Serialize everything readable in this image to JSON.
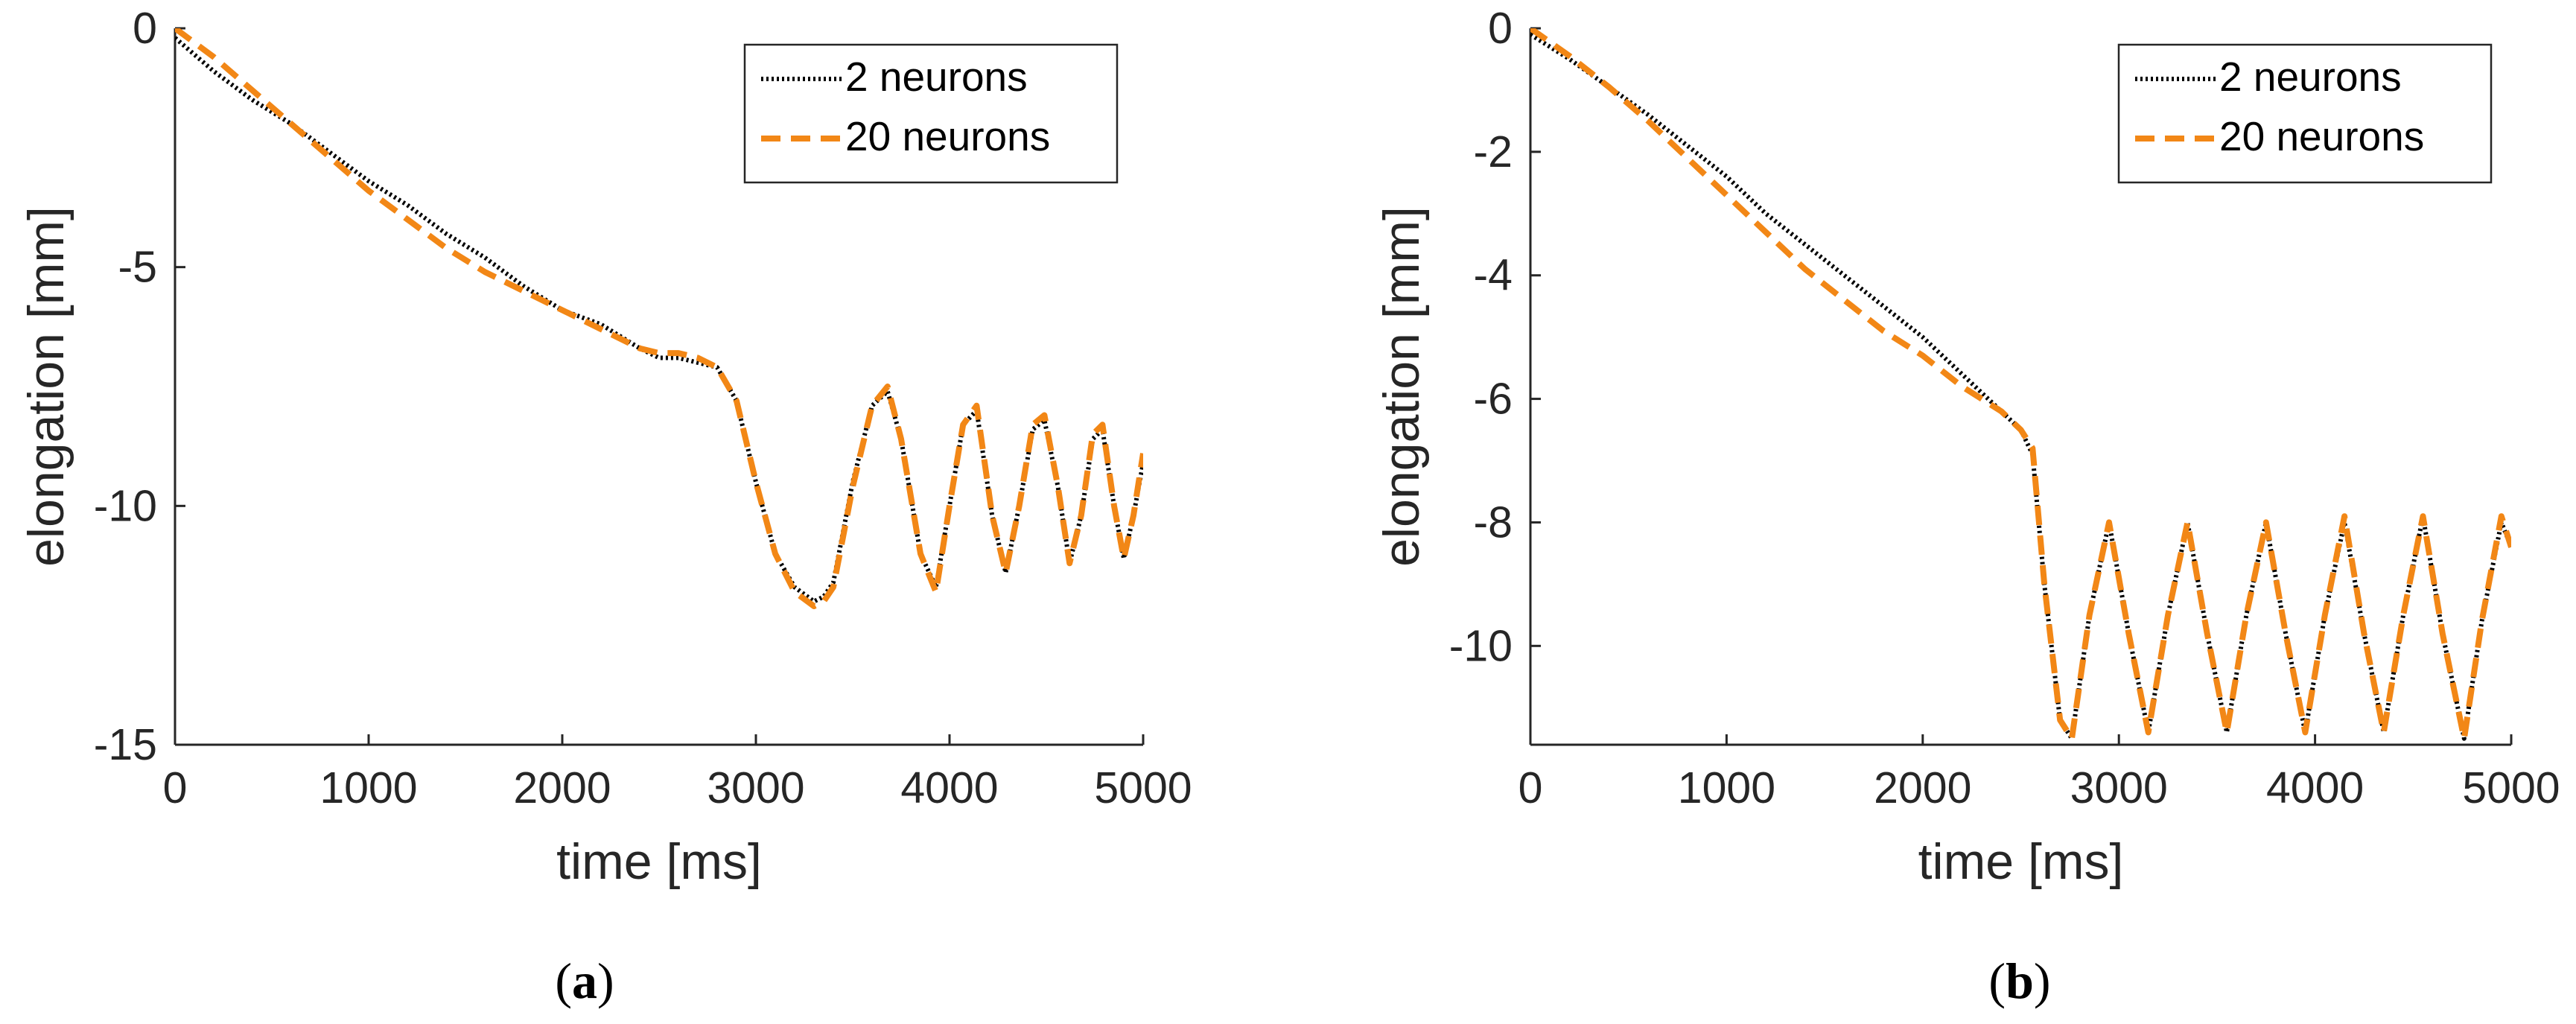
{
  "chart_data": [
    {
      "type": "line",
      "panel": "a",
      "caption_open": "(",
      "caption_letter": "a",
      "caption_close": ")",
      "xlabel": "time [ms]",
      "ylabel": "elongation [mm]",
      "xlim": [
        0,
        5000
      ],
      "ylim": [
        -15,
        0
      ],
      "xticks": [
        0,
        1000,
        2000,
        3000,
        4000,
        5000
      ],
      "yticks": [
        0,
        -5,
        -10,
        -15
      ],
      "legend_position": "top-right",
      "series": [
        {
          "name": "2 neurons",
          "style": "dotted",
          "color": "#000000",
          "x": [
            0,
            200,
            400,
            600,
            800,
            1000,
            1200,
            1400,
            1600,
            1800,
            2000,
            2200,
            2400,
            2500,
            2600,
            2700,
            2800,
            2900,
            3000,
            3100,
            3200,
            3300,
            3350,
            3400,
            3500,
            3600,
            3680,
            3750,
            3850,
            3930,
            4000,
            4070,
            4140,
            4220,
            4290,
            4360,
            4430,
            4490,
            4560,
            4620,
            4680,
            4740,
            4790,
            4850,
            4900,
            4950,
            5000
          ],
          "y": [
            -0.2,
            -0.9,
            -1.5,
            -2.0,
            -2.6,
            -3.2,
            -3.7,
            -4.3,
            -4.8,
            -5.4,
            -5.9,
            -6.2,
            -6.7,
            -6.9,
            -6.9,
            -7.0,
            -7.1,
            -7.8,
            -9.5,
            -11.0,
            -11.7,
            -12.0,
            -11.9,
            -11.6,
            -9.5,
            -7.9,
            -7.6,
            -8.6,
            -11.0,
            -11.7,
            -10.0,
            -8.3,
            -8.0,
            -10.2,
            -11.4,
            -10.0,
            -8.4,
            -8.2,
            -9.6,
            -11.2,
            -10.2,
            -8.6,
            -8.4,
            -10.0,
            -11.1,
            -10.2,
            -9.1
          ]
        },
        {
          "name": "20 neurons",
          "style": "dashed",
          "color": "#F28716",
          "x": [
            0,
            200,
            400,
            600,
            800,
            1000,
            1200,
            1400,
            1600,
            1800,
            2000,
            2200,
            2400,
            2500,
            2600,
            2700,
            2800,
            2900,
            3000,
            3100,
            3200,
            3300,
            3350,
            3400,
            3500,
            3600,
            3680,
            3750,
            3850,
            3930,
            4000,
            4070,
            4140,
            4220,
            4290,
            4360,
            4430,
            4490,
            4560,
            4620,
            4680,
            4740,
            4790,
            4850,
            4900,
            4950,
            5000
          ],
          "y": [
            0.0,
            -0.6,
            -1.3,
            -2.0,
            -2.7,
            -3.4,
            -4.0,
            -4.6,
            -5.1,
            -5.5,
            -5.9,
            -6.3,
            -6.7,
            -6.8,
            -6.8,
            -6.9,
            -7.1,
            -7.8,
            -9.5,
            -11.0,
            -11.8,
            -12.1,
            -12.0,
            -11.7,
            -9.6,
            -7.9,
            -7.5,
            -8.6,
            -11.0,
            -11.8,
            -10.0,
            -8.3,
            -7.9,
            -10.2,
            -11.4,
            -10.0,
            -8.3,
            -8.1,
            -9.6,
            -11.2,
            -10.2,
            -8.5,
            -8.3,
            -10.0,
            -11.1,
            -10.2,
            -8.9
          ]
        }
      ]
    },
    {
      "type": "line",
      "panel": "b",
      "caption_open": "(",
      "caption_letter": "b",
      "caption_close": ")",
      "xlabel": "time [ms]",
      "ylabel": "elongation [mm]",
      "xlim": [
        0,
        5000
      ],
      "ylim": [
        -11.6,
        0
      ],
      "xticks": [
        0,
        1000,
        2000,
        3000,
        4000,
        5000
      ],
      "yticks": [
        0,
        -2,
        -4,
        -6,
        -8,
        -10
      ],
      "legend_position": "top-right",
      "series": [
        {
          "name": "2 neurons",
          "style": "dotted",
          "color": "#000000",
          "x": [
            0,
            200,
            400,
            600,
            800,
            1000,
            1200,
            1400,
            1600,
            1800,
            2000,
            2200,
            2400,
            2500,
            2560,
            2620,
            2700,
            2760,
            2850,
            2950,
            3050,
            3150,
            3250,
            3350,
            3450,
            3550,
            3650,
            3750,
            3850,
            3950,
            4050,
            4150,
            4250,
            4350,
            4450,
            4550,
            4650,
            4760,
            4850,
            4950,
            5000
          ],
          "y": [
            -0.1,
            -0.5,
            -0.95,
            -1.4,
            -1.9,
            -2.4,
            -3.0,
            -3.5,
            -4.0,
            -4.5,
            -5.0,
            -5.6,
            -6.2,
            -6.5,
            -6.9,
            -9.0,
            -11.2,
            -11.5,
            -9.5,
            -8.0,
            -9.8,
            -11.4,
            -9.5,
            -8.0,
            -9.8,
            -11.4,
            -9.5,
            -8.0,
            -9.8,
            -11.4,
            -9.5,
            -8.0,
            -9.8,
            -11.4,
            -9.5,
            -7.9,
            -9.8,
            -11.5,
            -9.6,
            -8.0,
            -8.4
          ]
        },
        {
          "name": "20 neurons",
          "style": "dashed",
          "color": "#F28716",
          "x": [
            0,
            200,
            400,
            600,
            800,
            1000,
            1200,
            1400,
            1600,
            1800,
            2000,
            2200,
            2400,
            2500,
            2560,
            2620,
            2700,
            2760,
            2850,
            2950,
            3050,
            3150,
            3250,
            3350,
            3450,
            3550,
            3650,
            3750,
            3850,
            3950,
            4050,
            4150,
            4250,
            4350,
            4450,
            4550,
            4650,
            4760,
            4850,
            4950,
            5000
          ],
          "y": [
            0.0,
            -0.45,
            -0.95,
            -1.5,
            -2.1,
            -2.7,
            -3.3,
            -3.9,
            -4.4,
            -4.9,
            -5.3,
            -5.8,
            -6.2,
            -6.5,
            -6.8,
            -9.0,
            -11.2,
            -11.5,
            -9.5,
            -8.0,
            -9.8,
            -11.4,
            -9.5,
            -8.0,
            -9.8,
            -11.4,
            -9.5,
            -8.0,
            -9.8,
            -11.4,
            -9.5,
            -7.9,
            -9.8,
            -11.4,
            -9.5,
            -7.9,
            -9.8,
            -11.5,
            -9.6,
            -7.9,
            -8.4
          ]
        }
      ]
    }
  ]
}
